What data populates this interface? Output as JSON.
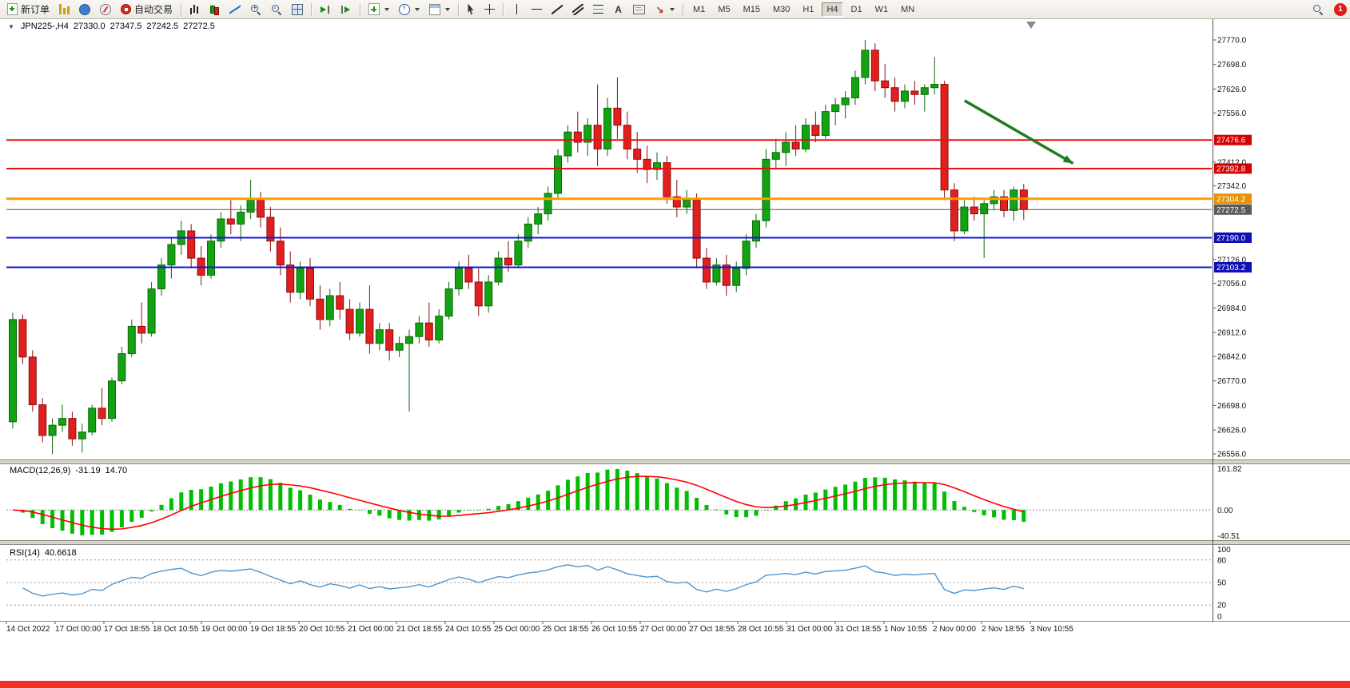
{
  "toolbar": {
    "items": [
      {
        "type": "button",
        "name": "new-order",
        "icon": "neworder",
        "label": "新订单"
      },
      {
        "type": "button",
        "name": "market-watch",
        "icon": "marketwatch"
      },
      {
        "type": "button",
        "name": "data-window",
        "icon": "datawindow"
      },
      {
        "type": "button",
        "name": "navigator",
        "icon": "navigator"
      },
      {
        "type": "button",
        "name": "autotrading",
        "icon": "autotrading",
        "label": "自动交易"
      },
      {
        "type": "sep"
      },
      {
        "type": "button",
        "name": "bar-chart-mode",
        "icon": "bars"
      },
      {
        "type": "button",
        "name": "candlestick-mode",
        "icon": "candles"
      },
      {
        "type": "button",
        "name": "line-chart-mode",
        "icon": "linechart"
      },
      {
        "type": "button",
        "name": "zoom-in",
        "icon": "zoom",
        "sign": "+"
      },
      {
        "type": "button",
        "name": "zoom-out",
        "icon": "zoom",
        "sign": "-"
      },
      {
        "type": "button",
        "name": "tile-windows",
        "icon": "tile"
      },
      {
        "type": "sep"
      },
      {
        "type": "button",
        "name": "auto-scroll",
        "icon": "autoscroll"
      },
      {
        "type": "button",
        "name": "chart-shift",
        "icon": "chartshift"
      },
      {
        "type": "sep"
      },
      {
        "type": "button",
        "name": "indicators",
        "icon": "indicators",
        "caret": true
      },
      {
        "type": "button",
        "name": "periods",
        "icon": "clock",
        "caret": true
      },
      {
        "type": "button",
        "name": "templates",
        "icon": "template",
        "caret": true
      },
      {
        "type": "sep"
      },
      {
        "type": "button",
        "name": "cursor",
        "icon": "cursor"
      },
      {
        "type": "button",
        "name": "crosshair",
        "icon": "crosshair"
      },
      {
        "type": "sep"
      },
      {
        "type": "button",
        "name": "vertical-line-tool",
        "icon": "vline"
      },
      {
        "type": "button",
        "name": "horizontal-line-tool",
        "icon": "hline"
      },
      {
        "type": "button",
        "name": "trendline-tool",
        "icon": "trend"
      },
      {
        "type": "button",
        "name": "channel-tool",
        "icon": "channel"
      },
      {
        "type": "button",
        "name": "fibonacci-tool",
        "icon": "fibo"
      },
      {
        "type": "button",
        "name": "text-tool",
        "icon": "glyph",
        "glyph": "A"
      },
      {
        "type": "button",
        "name": "label-tool",
        "icon": "label"
      },
      {
        "type": "button",
        "name": "arrows-tool",
        "icon": "glyph",
        "glyph": "↘",
        "color": "#b03030",
        "caret": true
      },
      {
        "type": "sep"
      },
      {
        "type": "timeframes"
      },
      {
        "type": "spacer"
      },
      {
        "type": "button",
        "name": "search",
        "icon": "zoom"
      },
      {
        "type": "badge",
        "name": "notification-badge",
        "label": "1"
      }
    ],
    "timeframes": [
      "M1",
      "M5",
      "M15",
      "M30",
      "H1",
      "H4",
      "D1",
      "W1",
      "MN"
    ],
    "active_timeframe": "H4"
  },
  "chart": {
    "collapse_glyph": "▼",
    "title": "JPN225-,H4",
    "open": "27330.0",
    "high": "27347.5",
    "low": "27242.5",
    "close": "27272.5"
  },
  "macd_header": {
    "label": "MACD(12,26,9)",
    "value_main": "-31.19",
    "value_signal": "14.70"
  },
  "rsi_header": {
    "label": "RSI(14)",
    "value": "40.6618"
  },
  "chart_data": {
    "type": "candlestick",
    "symbol": "JPN225-",
    "timeframe": "H4",
    "price_axis": {
      "visible_ticks": [
        27770,
        27698,
        27626,
        27556,
        27412,
        27342,
        27126,
        27056,
        26984,
        26912,
        26842,
        26770,
        26698,
        26626,
        26556
      ],
      "top_price": 27770,
      "bottom_price": 26556
    },
    "candles": [
      [
        26650,
        26970,
        26630,
        26950
      ],
      [
        26950,
        26965,
        26820,
        26840
      ],
      [
        26840,
        26860,
        26680,
        26700
      ],
      [
        26700,
        26720,
        26590,
        26610
      ],
      [
        26610,
        26660,
        26555,
        26640
      ],
      [
        26640,
        26700,
        26620,
        26660
      ],
      [
        26660,
        26680,
        26580,
        26600
      ],
      [
        26600,
        26645,
        26560,
        26620
      ],
      [
        26620,
        26700,
        26610,
        26690
      ],
      [
        26690,
        26750,
        26640,
        26660
      ],
      [
        26660,
        26780,
        26650,
        26770
      ],
      [
        26770,
        26870,
        26760,
        26850
      ],
      [
        26850,
        26950,
        26840,
        26930
      ],
      [
        26930,
        27000,
        26880,
        26910
      ],
      [
        26910,
        27060,
        26900,
        27040
      ],
      [
        27040,
        27130,
        27020,
        27110
      ],
      [
        27110,
        27190,
        27070,
        27170
      ],
      [
        27170,
        27240,
        27140,
        27210
      ],
      [
        27210,
        27230,
        27100,
        27130
      ],
      [
        27130,
        27165,
        27050,
        27080
      ],
      [
        27080,
        27200,
        27070,
        27180
      ],
      [
        27180,
        27265,
        27160,
        27245
      ],
      [
        27245,
        27300,
        27200,
        27230
      ],
      [
        27230,
        27285,
        27180,
        27265
      ],
      [
        27265,
        27360,
        27245,
        27305
      ],
      [
        27305,
        27325,
        27220,
        27250
      ],
      [
        27250,
        27280,
        27150,
        27180
      ],
      [
        27180,
        27220,
        27080,
        27110
      ],
      [
        27110,
        27150,
        27000,
        27030
      ],
      [
        27030,
        27120,
        27010,
        27100
      ],
      [
        27100,
        27130,
        26990,
        27010
      ],
      [
        27010,
        27050,
        26920,
        26950
      ],
      [
        26950,
        27040,
        26930,
        27020
      ],
      [
        27020,
        27060,
        26950,
        26980
      ],
      [
        26980,
        27010,
        26890,
        26910
      ],
      [
        26910,
        27000,
        26900,
        26980
      ],
      [
        26980,
        27050,
        26850,
        26880
      ],
      [
        26880,
        26940,
        26860,
        26920
      ],
      [
        26920,
        26940,
        26830,
        26860
      ],
      [
        26860,
        26900,
        26840,
        26880
      ],
      [
        26880,
        26920,
        26680,
        26900
      ],
      [
        26900,
        26960,
        26880,
        26940
      ],
      [
        26940,
        27000,
        26870,
        26890
      ],
      [
        26890,
        26980,
        26880,
        26960
      ],
      [
        26960,
        27060,
        26950,
        27040
      ],
      [
        27040,
        27120,
        27020,
        27100
      ],
      [
        27100,
        27140,
        27040,
        27060
      ],
      [
        27060,
        27100,
        26960,
        26990
      ],
      [
        26990,
        27080,
        26970,
        27060
      ],
      [
        27060,
        27150,
        27050,
        27130
      ],
      [
        27130,
        27180,
        27090,
        27110
      ],
      [
        27110,
        27200,
        27100,
        27180
      ],
      [
        27180,
        27250,
        27160,
        27230
      ],
      [
        27230,
        27280,
        27200,
        27260
      ],
      [
        27260,
        27340,
        27240,
        27320
      ],
      [
        27320,
        27450,
        27300,
        27430
      ],
      [
        27430,
        27520,
        27410,
        27500
      ],
      [
        27500,
        27560,
        27440,
        27470
      ],
      [
        27470,
        27540,
        27430,
        27520
      ],
      [
        27520,
        27640,
        27400,
        27450
      ],
      [
        27450,
        27600,
        27430,
        27570
      ],
      [
        27570,
        27660,
        27480,
        27520
      ],
      [
        27520,
        27560,
        27420,
        27450
      ],
      [
        27450,
        27500,
        27380,
        27420
      ],
      [
        27420,
        27460,
        27350,
        27390
      ],
      [
        27390,
        27440,
        27360,
        27410
      ],
      [
        27410,
        27430,
        27290,
        27310
      ],
      [
        27310,
        27360,
        27250,
        27280
      ],
      [
        27280,
        27330,
        27260,
        27300
      ],
      [
        27300,
        27320,
        27100,
        27130
      ],
      [
        27130,
        27160,
        27040,
        27060
      ],
      [
        27060,
        27130,
        27050,
        27110
      ],
      [
        27110,
        27140,
        27020,
        27050
      ],
      [
        27050,
        27120,
        27030,
        27100
      ],
      [
        27100,
        27200,
        27080,
        27180
      ],
      [
        27180,
        27260,
        27160,
        27240
      ],
      [
        27240,
        27450,
        27220,
        27420
      ],
      [
        27420,
        27480,
        27390,
        27440
      ],
      [
        27440,
        27500,
        27400,
        27470
      ],
      [
        27470,
        27520,
        27430,
        27450
      ],
      [
        27450,
        27540,
        27440,
        27520
      ],
      [
        27520,
        27560,
        27470,
        27490
      ],
      [
        27490,
        27580,
        27480,
        27560
      ],
      [
        27560,
        27600,
        27520,
        27580
      ],
      [
        27580,
        27620,
        27540,
        27600
      ],
      [
        27600,
        27680,
        27580,
        27660
      ],
      [
        27660,
        27770,
        27640,
        27740
      ],
      [
        27740,
        27760,
        27620,
        27650
      ],
      [
        27650,
        27700,
        27600,
        27630
      ],
      [
        27630,
        27660,
        27560,
        27590
      ],
      [
        27590,
        27640,
        27570,
        27620
      ],
      [
        27620,
        27650,
        27580,
        27610
      ],
      [
        27610,
        27640,
        27560,
        27630
      ],
      [
        27630,
        27720,
        27610,
        27640
      ],
      [
        27640,
        27650,
        27300,
        27330
      ],
      [
        27330,
        27350,
        27180,
        27210
      ],
      [
        27210,
        27300,
        27200,
        27280
      ],
      [
        27280,
        27310,
        27240,
        27260
      ],
      [
        27260,
        27300,
        27130,
        27290
      ],
      [
        27290,
        27330,
        27270,
        27310
      ],
      [
        27310,
        27330,
        27250,
        27270
      ],
      [
        27270,
        27340,
        27240,
        27330
      ],
      [
        27330,
        27347.5,
        27242.5,
        27272.5
      ]
    ],
    "time_labels": [
      "14 Oct 2022",
      "17 Oct 00:00",
      "17 Oct 18:55",
      "18 Oct 10:55",
      "19 Oct 00:00",
      "19 Oct 18:55",
      "20 Oct 10:55",
      "21 Oct 00:00",
      "21 Oct 18:55",
      "24 Oct 10:55",
      "25 Oct 00:00",
      "25 Oct 18:55",
      "26 Oct 10:55",
      "27 Oct 00:00",
      "27 Oct 18:55",
      "28 Oct 10:55",
      "31 Oct 00:00",
      "31 Oct 18:55",
      "1 Nov 10:55",
      "2 Nov 00:00",
      "2 Nov 18:55",
      "3 Nov 10:55"
    ],
    "hlines": [
      {
        "price": 27476.6,
        "color": "#e81010",
        "badge": "#d40000",
        "width": 2
      },
      {
        "price": 27392.8,
        "color": "#e81010",
        "badge": "#d40000",
        "width": 2
      },
      {
        "price": 27304.2,
        "color": "#ff9c00",
        "badge": "#e89000",
        "width": 3
      },
      {
        "price": 27272.5,
        "color": "#555555",
        "badge": "#5a5a5a",
        "width": 1
      },
      {
        "price": 27190.0,
        "color": "#1414d2",
        "badge": "#0f0fb4",
        "width": 2
      },
      {
        "price": 27103.2,
        "color": "#1414d2",
        "badge": "#0f0fb4",
        "width": 2
      }
    ],
    "trend_arrow": {
      "x1": 0.795,
      "price1": 27592,
      "x2": 0.885,
      "price2": 27408,
      "color": "#1f7d1f"
    },
    "colors": {
      "up": "#12a212",
      "up_border": "#0a6a0a",
      "down": "#e21f1f",
      "down_border": "#8e0e0e",
      "background": "#ffffff"
    },
    "macd": {
      "params": [
        12,
        26,
        9
      ],
      "scale_top": "161.82",
      "scale_zero": "0.00",
      "scale_bottom": "-40.51",
      "histogram_color": "#00be00",
      "signal_color": "#ff0000"
    },
    "rsi": {
      "period": 14,
      "levels": [
        80,
        50,
        20
      ],
      "scale_labels": [
        "100",
        "80",
        "50",
        "20",
        "0"
      ],
      "line_color": "#4d96d2"
    }
  }
}
